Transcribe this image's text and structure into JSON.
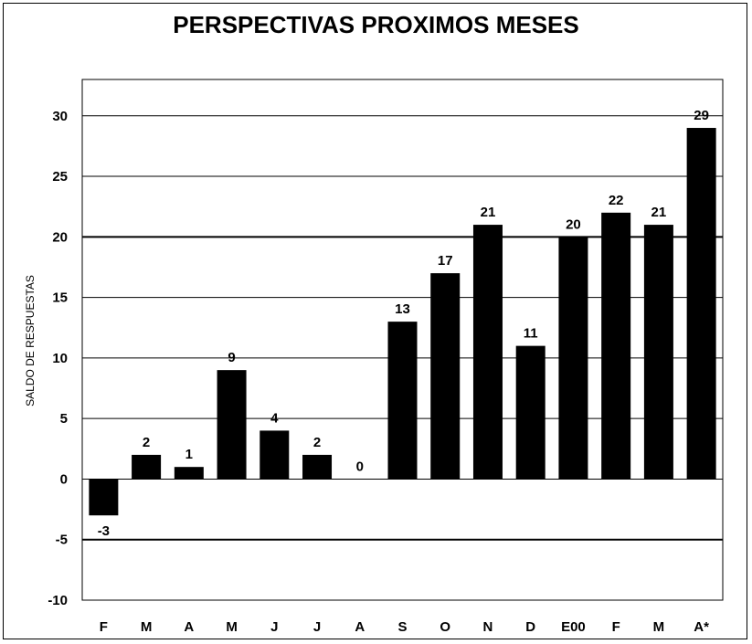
{
  "chart_data": {
    "type": "bar",
    "title": "PERSPECTIVAS PROXIMOS MESES",
    "xlabel": "",
    "ylabel": "SALDO DE RESPUESTAS",
    "categories": [
      "F",
      "M",
      "A",
      "M",
      "J",
      "J",
      "A",
      "S",
      "O",
      "N",
      "D",
      "E00",
      "F",
      "M",
      "A*"
    ],
    "values": [
      -3,
      2,
      1,
      9,
      4,
      2,
      0,
      13,
      17,
      21,
      11,
      20,
      22,
      21,
      29
    ],
    "ylim": [
      -10,
      33
    ],
    "yticks": [
      -10,
      -5,
      0,
      5,
      10,
      15,
      20,
      25,
      30
    ],
    "grid": true,
    "legend": "none",
    "bar_color": "#000000"
  }
}
